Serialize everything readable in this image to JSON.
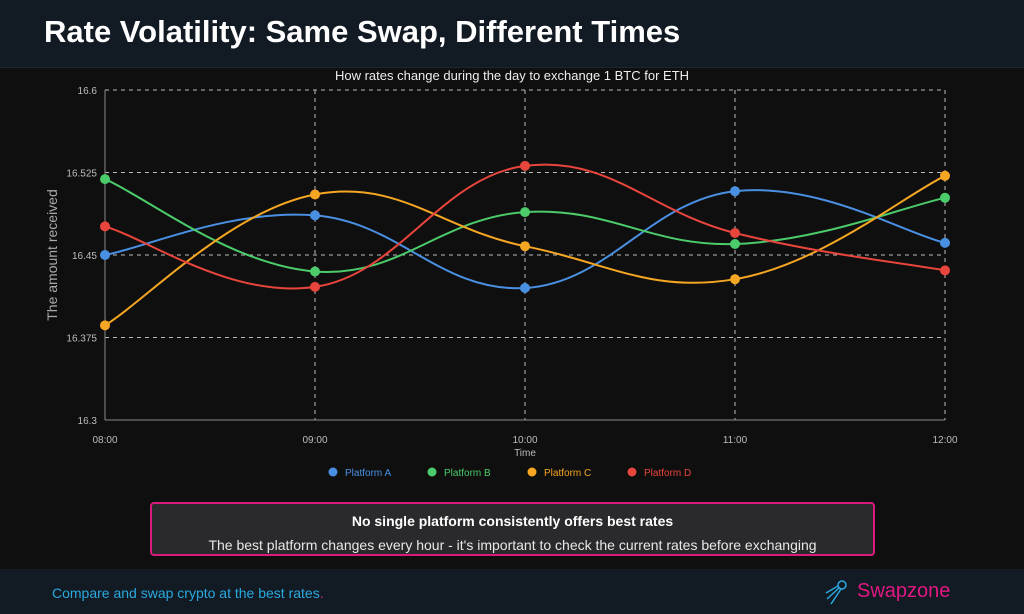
{
  "header": {
    "title": "Rate Volatility: Same Swap, Different Times"
  },
  "chart_data": {
    "type": "line",
    "title": "How rates change during the day to exchange 1 BTC for ETH",
    "xlabel": "Time",
    "ylabel": "The amount received",
    "categories": [
      "08:00",
      "09:00",
      "10:00",
      "11:00",
      "12:00"
    ],
    "ylim": [
      16.3,
      16.6
    ],
    "yticks": [
      "16.6",
      "16.525",
      "16.45",
      "16.375",
      "16.3"
    ],
    "grid": true,
    "legend_position": "bottom",
    "series": [
      {
        "name": "Platform A",
        "color": "#4a90e2",
        "values": [
          16.45,
          16.486,
          16.42,
          16.508,
          16.461
        ]
      },
      {
        "name": "Platform B",
        "color": "#4ccb6a",
        "values": [
          16.519,
          16.435,
          16.489,
          16.46,
          16.502
        ]
      },
      {
        "name": "Platform C",
        "color": "#f5a623",
        "values": [
          16.386,
          16.505,
          16.458,
          16.428,
          16.522
        ]
      },
      {
        "name": "Platform D",
        "color": "#e8453c",
        "values": [
          16.476,
          16.421,
          16.531,
          16.47,
          16.436
        ]
      }
    ]
  },
  "callout": {
    "heading": "No single platform consistently offers best rates",
    "text": "The best platform changes every hour - it's important to check the current rates before exchanging"
  },
  "footer": {
    "tagline": "Compare and swap crypto at the best rates",
    "tagline_dot": ".",
    "brand": "Swapzone"
  }
}
